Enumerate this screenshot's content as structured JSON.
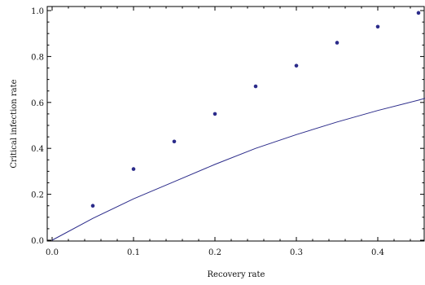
{
  "chart_data": {
    "type": "scatter",
    "xlabel": "Recovery rate",
    "ylabel": "Critical infection rate",
    "xlim": [
      0,
      0.46
    ],
    "ylim": [
      0,
      1.0
    ],
    "x_ticks": [
      "0.0",
      "0.1",
      "0.2",
      "0.3",
      "0.4"
    ],
    "y_ticks": [
      "0.0",
      "0.2",
      "0.4",
      "0.6",
      "0.8",
      "1.0"
    ],
    "grid": false,
    "series": [
      {
        "type": "scatter",
        "x": [
          0.05,
          0.1,
          0.15,
          0.2,
          0.25,
          0.3,
          0.35,
          0.4,
          0.45
        ],
        "y": [
          0.15,
          0.31,
          0.43,
          0.55,
          0.67,
          0.76,
          0.86,
          0.93,
          0.99
        ]
      },
      {
        "type": "line",
        "x": [
          0.0,
          0.05,
          0.1,
          0.15,
          0.2,
          0.25,
          0.3,
          0.35,
          0.4,
          0.45,
          0.46
        ],
        "y": [
          0.0,
          0.095,
          0.18,
          0.255,
          0.33,
          0.4,
          0.46,
          0.515,
          0.565,
          0.61,
          0.62
        ]
      }
    ],
    "colors": {
      "series": "#2b2b8a",
      "axis": "#000000"
    }
  }
}
